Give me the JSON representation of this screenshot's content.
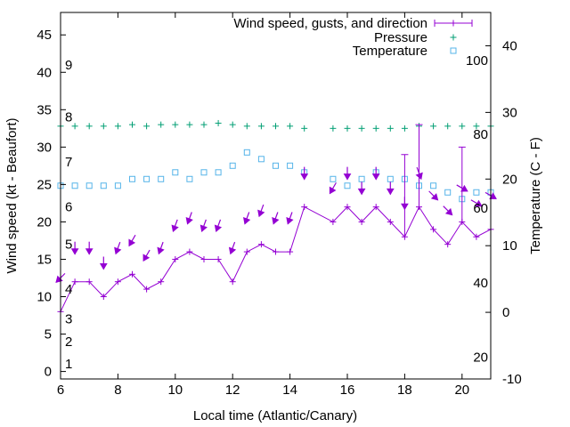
{
  "chart_data": {
    "type": "line",
    "xlabel": "Local time (Atlantic/Canary)",
    "ylabel": "Wind speed (kt - Beaufort)",
    "y2label": "Temperature (C - F)",
    "xlim": [
      6,
      21
    ],
    "ylim": [
      -1,
      48
    ],
    "y2lim": [
      -10,
      45
    ],
    "x_ticks": [
      6,
      8,
      10,
      12,
      14,
      16,
      18,
      20
    ],
    "y_ticks": [
      0,
      5,
      10,
      15,
      20,
      25,
      30,
      35,
      40,
      45
    ],
    "y2_ticks": [
      -10,
      0,
      10,
      20,
      30,
      40
    ],
    "grid": false,
    "legend_position": "top-right",
    "colors": {
      "wind": "#9400d3",
      "pressure": "#009e73",
      "temperature": "#56b4e9"
    },
    "beaufort_labels": [
      {
        "text": "1",
        "y": 1
      },
      {
        "text": "2",
        "y": 4
      },
      {
        "text": "3",
        "y": 7
      },
      {
        "text": "4",
        "y": 11
      },
      {
        "text": "5",
        "y": 17
      },
      {
        "text": "6",
        "y": 22
      },
      {
        "text": "7",
        "y": 28
      },
      {
        "text": "8",
        "y": 34
      },
      {
        "text": "9",
        "y": 41
      }
    ],
    "fahrenheit_labels": [
      {
        "text": "20",
        "y2": -6.7
      },
      {
        "text": "40",
        "y2": 4.4
      },
      {
        "text": "60",
        "y2": 15.6
      },
      {
        "text": "80",
        "y2": 26.7
      },
      {
        "text": "100",
        "y2": 37.8
      }
    ],
    "series": [
      {
        "name": "Wind speed, gusts, and direction",
        "type": "line-errorbar",
        "x": [
          6,
          6.5,
          7,
          7.5,
          8,
          8.5,
          9,
          9.5,
          10,
          10.5,
          11,
          11.5,
          12,
          12.5,
          13,
          13.5,
          14,
          14.5,
          15.5,
          16,
          16.5,
          17,
          17.5,
          18,
          18.5,
          19,
          19.5,
          20,
          20.5,
          21
        ],
        "y": [
          8,
          12,
          12,
          10,
          12,
          13,
          11,
          12,
          15,
          16,
          15,
          15,
          12,
          16,
          17,
          16,
          16,
          22,
          20,
          22,
          20,
          22,
          20,
          18,
          22,
          19,
          17,
          20,
          18,
          19
        ],
        "gusts": [
          [
            18,
            29
          ],
          [
            18.5,
            33
          ],
          [
            20,
            30
          ]
        ],
        "direction_deg": [
          45,
          0,
          0,
          0,
          20,
          30,
          30,
          20,
          20,
          20,
          20,
          20,
          20,
          20,
          20,
          20,
          20,
          0,
          30,
          0,
          0,
          0,
          0,
          0,
          340,
          315,
          315,
          300,
          300,
          300
        ]
      },
      {
        "name": "Pressure",
        "type": "scatter",
        "x": [
          6,
          6.5,
          7,
          7.5,
          8,
          8.5,
          9,
          9.5,
          10,
          10.5,
          11,
          11.5,
          12,
          12.5,
          13,
          13.5,
          14,
          14.5,
          15.5,
          16,
          16.5,
          17,
          17.5,
          18,
          18.5,
          19,
          19.5,
          20,
          20.5,
          21
        ],
        "y": [
          32.8,
          32.8,
          32.8,
          32.8,
          32.8,
          33,
          32.8,
          33,
          33,
          33,
          33,
          33.2,
          33,
          32.8,
          32.8,
          32.8,
          32.8,
          32.5,
          32.5,
          32.5,
          32.5,
          32.5,
          32.5,
          32.5,
          32.8,
          32.8,
          32.8,
          32.8,
          32.8,
          32.8
        ]
      },
      {
        "name": "Temperature",
        "type": "scatter",
        "axis": "y2",
        "x": [
          6,
          6.5,
          7,
          7.5,
          8,
          8.5,
          9,
          9.5,
          10,
          10.5,
          11,
          11.5,
          12,
          12.5,
          13,
          13.5,
          14,
          14.5,
          15.5,
          16,
          16.5,
          17,
          17.5,
          18,
          18.5,
          19,
          19.5,
          20,
          20.5,
          21
        ],
        "y": [
          19,
          19,
          19,
          19,
          19,
          20,
          20,
          20,
          21,
          20,
          21,
          21,
          22,
          24,
          23,
          22,
          22,
          21,
          20,
          19,
          20,
          21,
          20,
          20,
          19,
          19,
          18,
          17,
          18,
          18
        ]
      }
    ]
  }
}
